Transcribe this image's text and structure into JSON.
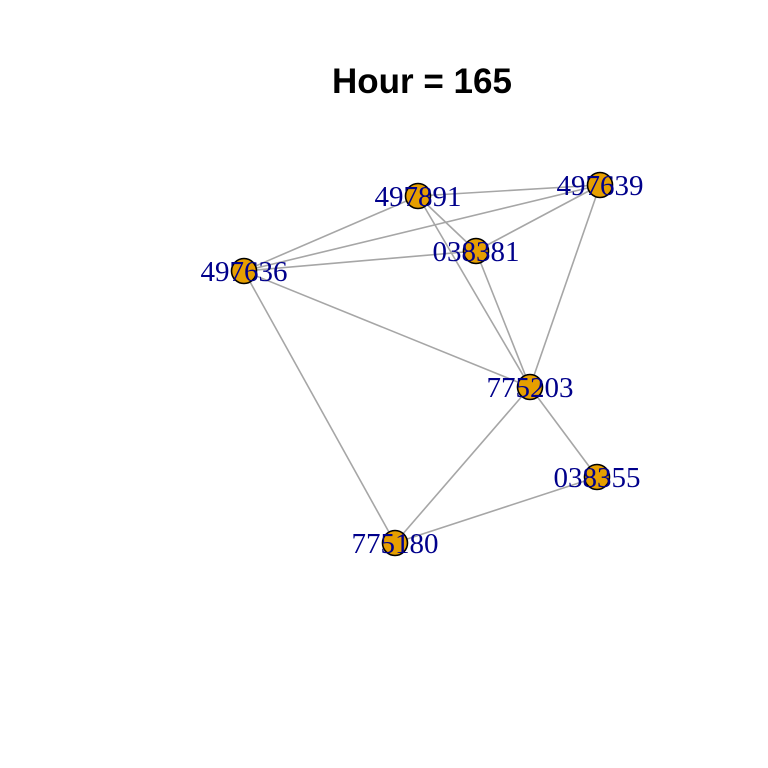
{
  "title": "Hour = 165",
  "colors": {
    "node_fill": "#e69f00",
    "node_stroke": "#000000",
    "edge": "#a6a6a6",
    "label": "#00008b",
    "title": "#000000",
    "background": "#ffffff"
  },
  "nodes": [
    {
      "id": "497891",
      "label": "497891"
    },
    {
      "id": "497639",
      "label": "497639"
    },
    {
      "id": "038381",
      "label": "038381"
    },
    {
      "id": "497636",
      "label": "497636"
    },
    {
      "id": "775203",
      "label": "775203"
    },
    {
      "id": "038355",
      "label": "038355"
    },
    {
      "id": "775180",
      "label": "775180"
    }
  ],
  "edges": [
    [
      "497891",
      "497639"
    ],
    [
      "497891",
      "038381"
    ],
    [
      "497891",
      "497636"
    ],
    [
      "497891",
      "775203"
    ],
    [
      "497639",
      "038381"
    ],
    [
      "497639",
      "497636"
    ],
    [
      "497639",
      "775203"
    ],
    [
      "038381",
      "497636"
    ],
    [
      "038381",
      "775203"
    ],
    [
      "497636",
      "775203"
    ],
    [
      "497636",
      "775180"
    ],
    [
      "775203",
      "038355"
    ],
    [
      "775203",
      "775180"
    ],
    [
      "038355",
      "775180"
    ]
  ]
}
